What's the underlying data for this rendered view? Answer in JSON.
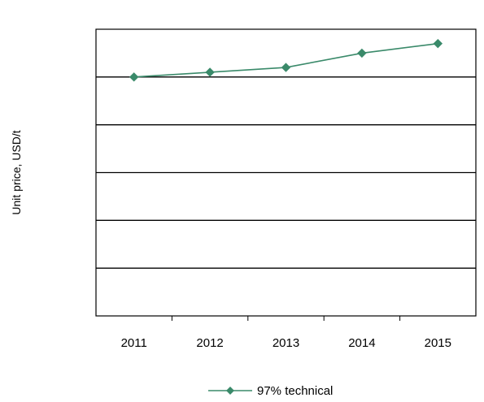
{
  "chart_data": {
    "type": "line",
    "title": "",
    "xlabel": "",
    "ylabel": "Unit price, USD/t",
    "categories": [
      "2011",
      "2012",
      "2013",
      "2014",
      "2015"
    ],
    "series": [
      {
        "name": "97% technical",
        "values": [
          5.0,
          5.1,
          5.2,
          5.5,
          5.7
        ],
        "color": "#3a8a6a"
      }
    ],
    "ylim": [
      0,
      6
    ],
    "grid": true,
    "legend": "bottom"
  }
}
